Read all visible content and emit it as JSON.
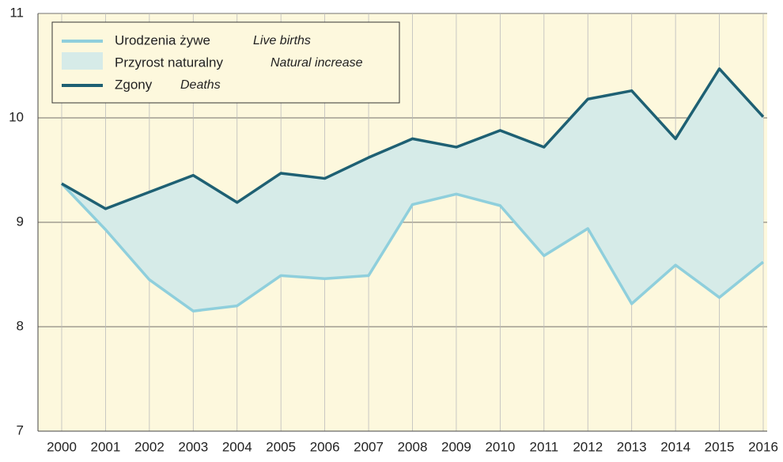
{
  "chart_data": {
    "type": "line",
    "categories": [
      "2000",
      "2001",
      "2002",
      "2003",
      "2004",
      "2005",
      "2006",
      "2007",
      "2008",
      "2009",
      "2010",
      "2011",
      "2012",
      "2013",
      "2014",
      "2015",
      "2016"
    ],
    "series": [
      {
        "name": "Urodzenia żywe",
        "name_en": "Live births",
        "color": "#8fcfdc",
        "values": [
          9.37,
          8.93,
          8.45,
          8.15,
          8.2,
          8.49,
          8.46,
          8.49,
          9.17,
          9.27,
          9.16,
          8.68,
          8.94,
          8.22,
          8.59,
          8.28,
          8.62
        ]
      },
      {
        "name": "Zgony",
        "name_en": "Deaths",
        "color": "#1e6073",
        "values": [
          9.37,
          9.13,
          9.29,
          9.45,
          9.19,
          9.47,
          9.42,
          9.62,
          9.8,
          9.72,
          9.88,
          9.72,
          10.18,
          10.26,
          9.8,
          10.47,
          10.01
        ]
      }
    ],
    "area": {
      "name": "Przyrost naturalny",
      "name_en": "Natural increase",
      "color": "#d6ebe8"
    },
    "ylim": [
      7,
      11
    ],
    "yticks": [
      7,
      8,
      9,
      10,
      11
    ],
    "grid": true
  }
}
